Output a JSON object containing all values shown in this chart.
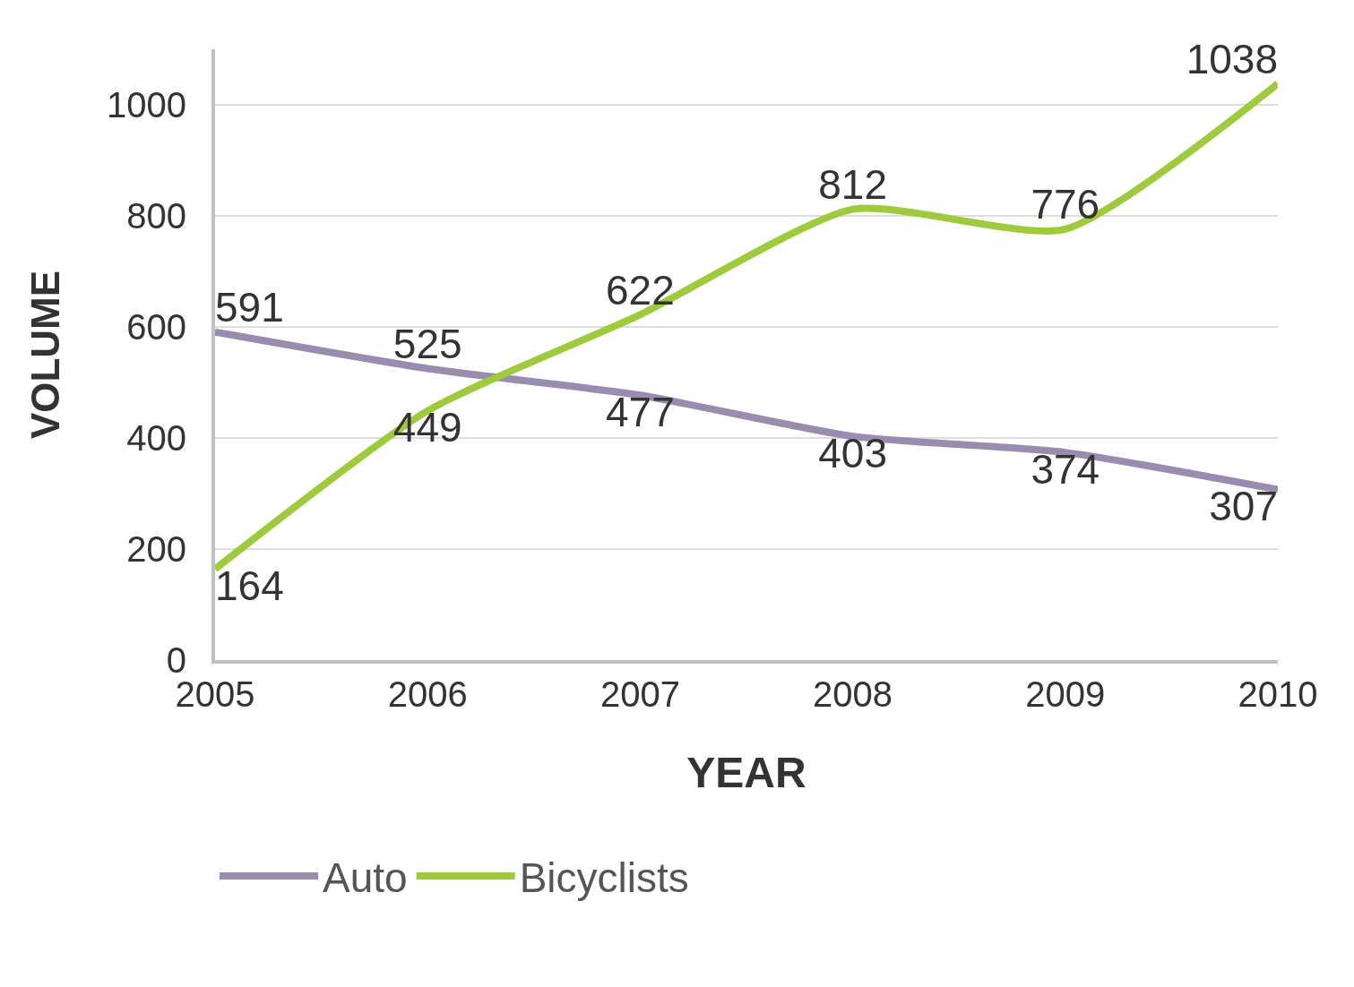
{
  "chart_data": {
    "type": "line",
    "xlabel": "YEAR",
    "ylabel": "VOLUME",
    "x": [
      2005,
      2006,
      2007,
      2008,
      2009,
      2010
    ],
    "series": [
      {
        "name": "Auto",
        "color": "#9b8bb0",
        "values": [
          591,
          525,
          477,
          403,
          374,
          307
        ]
      },
      {
        "name": "Bicyclists",
        "color": "#9dcb3c",
        "values": [
          164,
          449,
          622,
          812,
          776,
          1038
        ]
      }
    ],
    "xlim": [
      2005,
      2010
    ],
    "xticks": [
      2005,
      2006,
      2007,
      2008,
      2009,
      2010
    ],
    "ylim": [
      0,
      1100
    ],
    "yticks": [
      0,
      200,
      400,
      600,
      800,
      1000
    ],
    "grid": "y",
    "legend": "bottom left",
    "data_labels": true,
    "marker": "none",
    "line_style": "solid"
  }
}
